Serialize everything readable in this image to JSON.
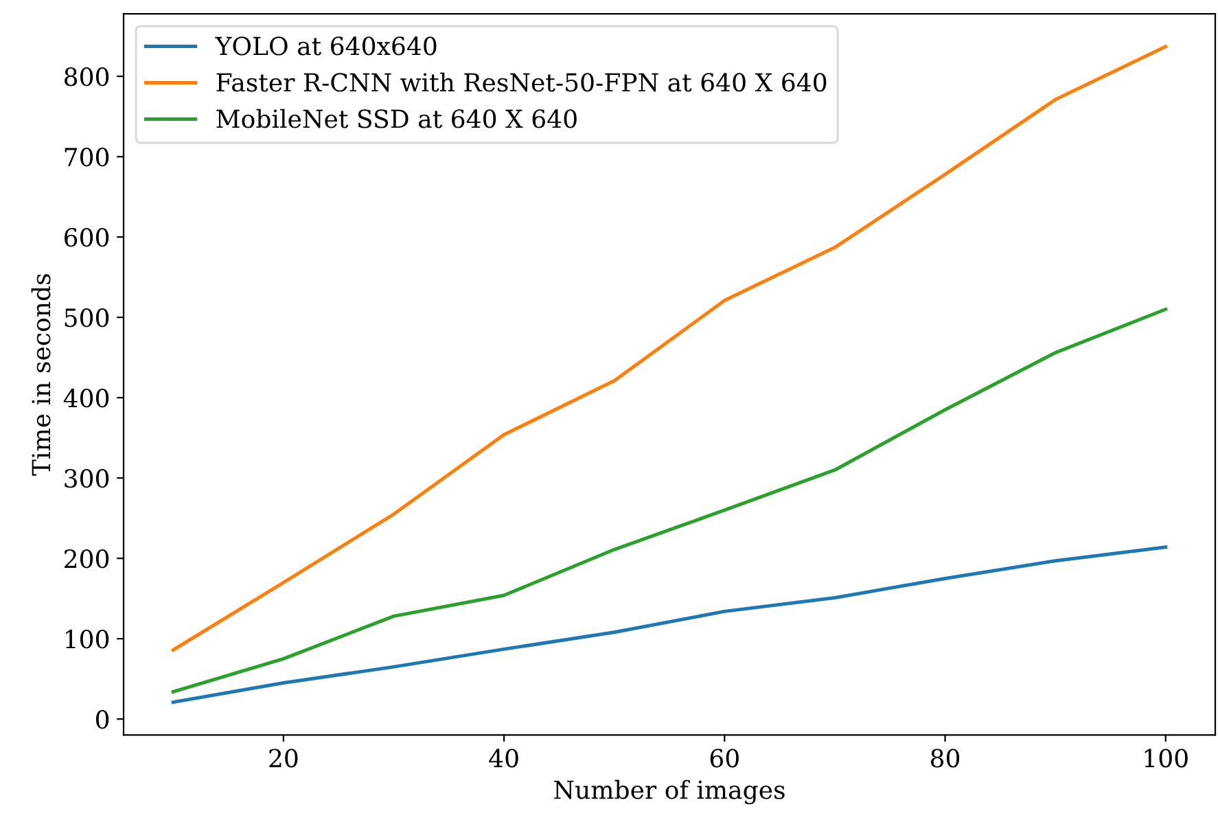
{
  "chart_data": {
    "type": "line",
    "xlabel": "Number of images",
    "ylabel": "Time in seconds",
    "x": [
      10,
      20,
      30,
      40,
      50,
      60,
      70,
      80,
      90,
      100
    ],
    "series": [
      {
        "name": "YOLO at 640x640",
        "color": "#1f77b4",
        "values": [
          21,
          45,
          65,
          87,
          108,
          134,
          151,
          175,
          197,
          214
        ]
      },
      {
        "name": "Faster R-CNN with ResNet-50-FPN at 640 X 640",
        "color": "#ff7f0e",
        "values": [
          86,
          170,
          255,
          354,
          421,
          521,
          587,
          678,
          771,
          837
        ]
      },
      {
        "name": "MobileNet SSD at 640 X 640",
        "color": "#2ca02c",
        "values": [
          34,
          75,
          128,
          154,
          211,
          260,
          310,
          385,
          456,
          510
        ]
      }
    ],
    "xlim": [
      5.5,
      104.5
    ],
    "ylim": [
      -19.8,
      877.8
    ],
    "xticks": [
      20,
      40,
      60,
      80,
      100
    ],
    "yticks": [
      0,
      100,
      200,
      300,
      400,
      500,
      600,
      700,
      800
    ],
    "legend": "top left",
    "grid": false,
    "marker": "none",
    "line_style": "solid"
  }
}
